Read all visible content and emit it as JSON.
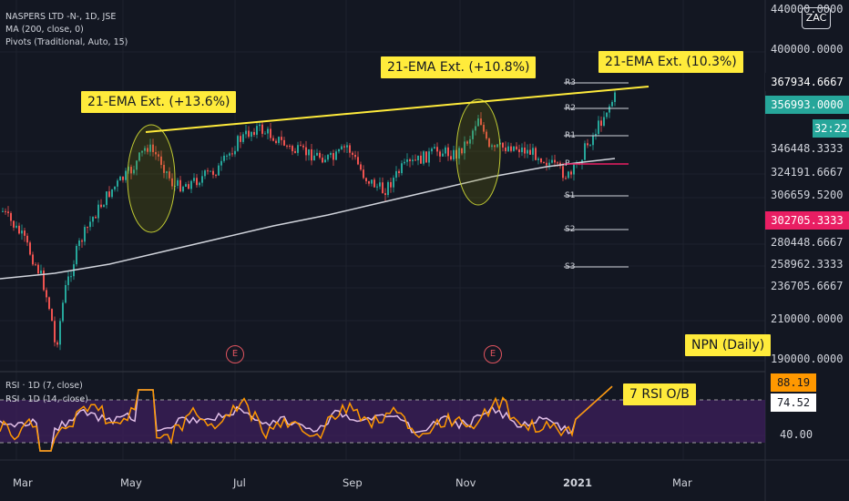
{
  "legend": {
    "title": "NASPERS LTD -N-, 1D, JSE",
    "ma": "MA (200, close, 0)",
    "pivots": "Pivots (Traditional, Auto, 15)",
    "rsi7": "RSI · 1D (7, close)",
    "rsi14": "RSI · 1D (14, close)"
  },
  "logo": "ZAC",
  "callouts": {
    "ema1": "21-EMA Ext. (+13.6%)",
    "ema2": "21-EMA Ext. (+10.8%)",
    "ema3": "21-EMA Ext. (10.3%)",
    "symbol": "NPN (Daily)",
    "rsi": "7 RSI O/B"
  },
  "events": [
    "E",
    "E"
  ],
  "pivots": [
    "R3",
    "R2",
    "R1",
    "P",
    "S1",
    "S2",
    "S3"
  ],
  "price_axis": {
    "top": "440000.0000",
    "ticks": [
      "400000.0000",
      "346448.3333",
      "324191.6667",
      "306659.5200",
      "280448.6667",
      "258962.3333",
      "236705.6667",
      "210000.0000",
      "190000.0000"
    ],
    "boxes": {
      "r3": "367934.6667",
      "last": "356993.0000",
      "countdown": "32:22",
      "p": "302705.3333"
    }
  },
  "rsi_axis": {
    "ticks": [
      "40.00"
    ],
    "boxes": {
      "rsi7": "88.19",
      "rsi14": "74.52"
    }
  },
  "time_axis": [
    "Mar",
    "May",
    "Jul",
    "Sep",
    "Nov",
    "2021",
    "Mar"
  ],
  "colors": {
    "background": "#131722",
    "up": "#26a69a",
    "down": "#ef5350",
    "ma": "#d1d4dc",
    "trendline": "#ffeb3b",
    "rsi7": "#ff9800",
    "rsi14": "#e1bee7",
    "rsi_band": "#3d1f5c",
    "last_price": "#26a69a",
    "pivot_p": "#e91e63"
  }
}
